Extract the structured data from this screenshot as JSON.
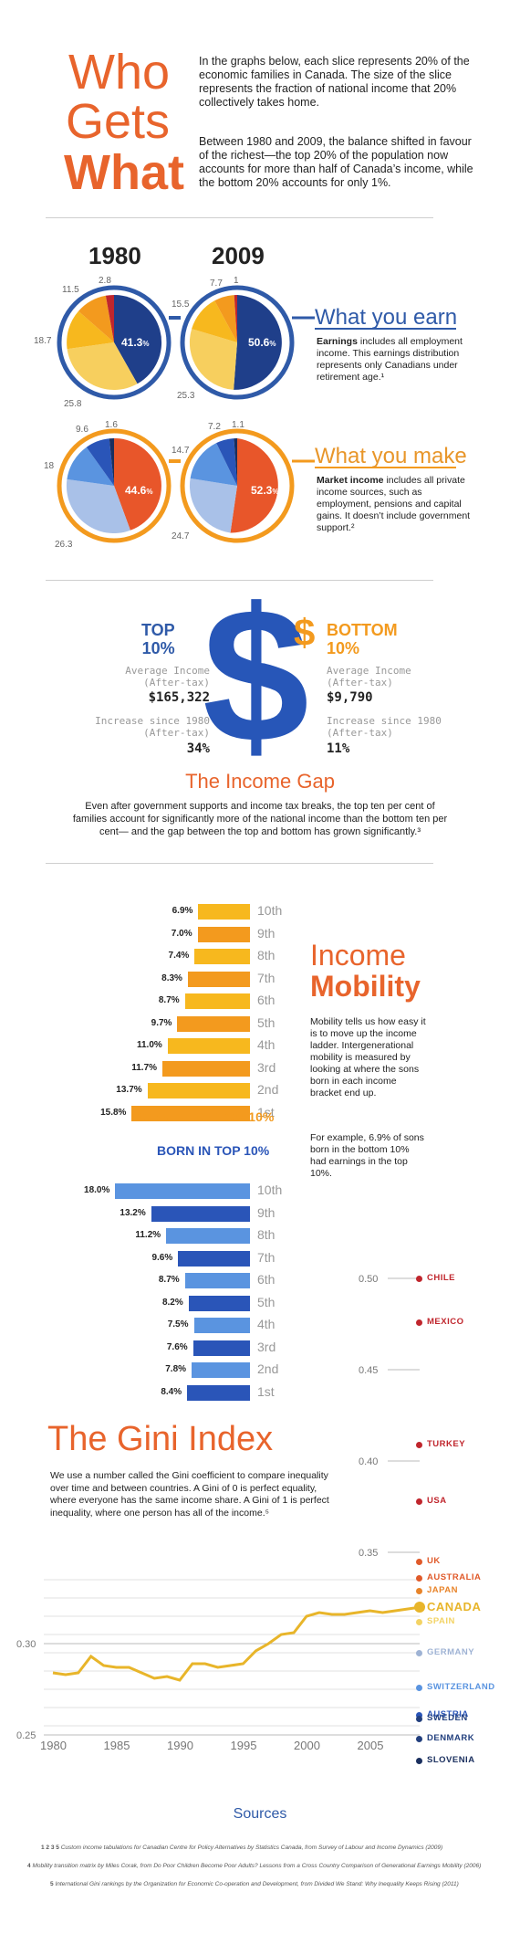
{
  "header": {
    "who": "Who",
    "gets": "Gets",
    "what": "What",
    "intro1": "In the graphs below, each slice represents 20% of the economic families in Canada. The size of the slice represents the fraction of national income that 20% collectively takes home.",
    "intro2": "Between 1980 and 2009, the balance shifted in favour of the richest—the top 20% of the population now accounts for more than half of Canada’s income, while the bottom 20% accounts for only 1%."
  },
  "pies": {
    "year1980": "1980",
    "year2009": "2009",
    "earn": {
      "heading": "What you earn",
      "desc_bold": "Earnings",
      "desc": " includes all employment income. This earnings distribution represents only Canadians under retirement age.¹",
      "p1980": {
        "center": "41.3",
        "labels": [
          "2.8",
          "11.5",
          "18.7",
          "25.8"
        ]
      },
      "p2009": {
        "center": "50.6",
        "labels": [
          "7.7",
          "1",
          "15.5",
          "25.3"
        ]
      }
    },
    "make": {
      "heading": "What you make",
      "desc_bold": "Market income",
      "desc": " includes all private income sources, such as employment, pensions and capital gains. It doesn’t include government support.²",
      "p1980": {
        "center": "44.6",
        "labels": [
          "1.6",
          "9.6",
          "18",
          "26.3"
        ]
      },
      "p2009": {
        "center": "52.3",
        "labels": [
          "7.2",
          "1.1",
          "14.7",
          "24.7"
        ]
      }
    },
    "pct": "%"
  },
  "gap": {
    "top_title": "TOP",
    "top_pct": "10%",
    "bottom_title": "BOTTOM",
    "bottom_pct": "10%",
    "avg_label": "Average Income",
    "after_tax": "(After-tax)",
    "top_avg": "$165,322",
    "bottom_avg": "$9,790",
    "inc_label": "Increase since 1980",
    "top_inc": "34%",
    "bottom_inc": "11%",
    "dollar": "$",
    "small_dollar": "$",
    "heading": "The Income Gap",
    "text": "Even after government supports and income tax breaks, the top ten per cent of families account for significantly more of the national income than the bottom ten per cent— and the gap between the top and bottom has grown significantly.³"
  },
  "mobility": {
    "title1": "Income",
    "title2": "Mobility",
    "desc": "Mobility tells us how easy it is to move up the income ladder. Intergenerational mobility is measured by looking at where the sons born in each income bracket end up.",
    "example": "For example, 6.9% of sons born in the bottom 10% had earnings in the top 10%.",
    "bottom_label": "BORN IN BOTTOM 10%",
    "top_label": "BORN IN TOP 10%",
    "deciles": [
      "10th",
      "9th",
      "8th",
      "7th",
      "6th",
      "5th",
      "4th",
      "3rd",
      "2nd",
      "1st"
    ],
    "bottom_values": [
      "6.9%",
      "7.0%",
      "7.4%",
      "8.3%",
      "8.7%",
      "9.7%",
      "11.0%",
      "11.7%",
      "13.7%",
      "15.8%"
    ],
    "top_values": [
      "18.0%",
      "13.2%",
      "11.2%",
      "9.6%",
      "8.7%",
      "8.2%",
      "7.5%",
      "7.6%",
      "7.8%",
      "8.4%"
    ],
    "orange_dark": "#f39a1e",
    "orange_light": "#f7b81e",
    "blue_dark": "#2a55b8",
    "blue_light": "#5a94e0"
  },
  "gini": {
    "title": "The Gini Index",
    "text": "We use a number called the Gini coefficient to compare inequality over time and between countries. A Gini of 0 is perfect equality, where everyone has the same income share. A Gini of 1 is perfect inequality, where one person has all of the income.⁵",
    "y_ticks": [
      "0.50",
      "0.45",
      "0.40",
      "0.35",
      "0.30",
      "0.25"
    ],
    "x_ticks": [
      "1980",
      "1985",
      "1990",
      "1995",
      "2000",
      "2005"
    ],
    "countries": [
      {
        "name": "CHILE",
        "value": 0.5,
        "color": "#c0262d"
      },
      {
        "name": "MEXICO",
        "value": 0.476,
        "color": "#c0262d"
      },
      {
        "name": "TURKEY",
        "value": 0.409,
        "color": "#c0262d"
      },
      {
        "name": "USA",
        "value": 0.378,
        "color": "#c0262d"
      },
      {
        "name": "UK",
        "value": 0.345,
        "color": "#e05a2a"
      },
      {
        "name": "AUSTRALIA",
        "value": 0.336,
        "color": "#e05a2a"
      },
      {
        "name": "JAPAN",
        "value": 0.329,
        "color": "#e8842a"
      },
      {
        "name": "CANADA",
        "value": 0.32,
        "color": "#e8b52a"
      },
      {
        "name": "SPAIN",
        "value": 0.312,
        "color": "#f3d365"
      },
      {
        "name": "GERMANY",
        "value": 0.295,
        "color": "#9fb3d4"
      },
      {
        "name": "SWITZERLAND",
        "value": 0.276,
        "color": "#5a94e0"
      },
      {
        "name": "AUSTRIA",
        "value": 0.261,
        "color": "#2a55b8"
      },
      {
        "name": "SWEDEN",
        "value": 0.259,
        "color": "#23407e"
      },
      {
        "name": "DENMARK",
        "value": 0.248,
        "color": "#23407e"
      },
      {
        "name": "SLOVENIA",
        "value": 0.236,
        "color": "#1a2f5e"
      }
    ],
    "canada_years": [
      1980,
      1981,
      1982,
      1983,
      1984,
      1985,
      1986,
      1987,
      1988,
      1989,
      1990,
      1991,
      1992,
      1993,
      1994,
      1995,
      1996,
      1997,
      1998,
      1999,
      2000,
      2001,
      2002,
      2003,
      2004,
      2005,
      2006,
      2007,
      2008,
      2009
    ],
    "canada_values": [
      0.284,
      0.283,
      0.284,
      0.293,
      0.288,
      0.287,
      0.287,
      0.284,
      0.281,
      0.282,
      0.28,
      0.289,
      0.289,
      0.287,
      0.288,
      0.289,
      0.296,
      0.3,
      0.305,
      0.306,
      0.315,
      0.317,
      0.316,
      0.316,
      0.317,
      0.318,
      0.317,
      0.318,
      0.319,
      0.32
    ]
  },
  "sources": {
    "heading": "Sources",
    "s1_num": "1 2 3 5",
    "s1": "Custom income tabulations for Canadian Centre for Policy Alternatives by Statistics Canada, from Survey of Labour and Income Dynamics (2009)",
    "s2_num": "4",
    "s2": "Mobility transition matrix by Miles Corak, from Do Poor Children Become Poor Adults? Lessons from a Cross Country Comparison of Generational Earnings Mobility (2006)",
    "s3_num": "5",
    "s3": "International Gini rankings by the Organization for Economic Co-operation and Development, from Divided We Stand: Why Inequality Keeps Rising (2011)"
  }
}
